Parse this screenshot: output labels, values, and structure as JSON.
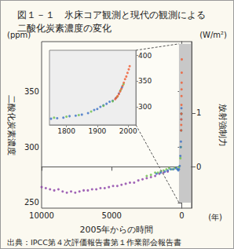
{
  "chart_data": [
    {
      "type": "scatter",
      "title": "図１－１　氷床コア観測と現代の観測による\n二酸化炭素濃度の変化",
      "xlabel": "2005年からの時間",
      "xunit": "(年)",
      "ylabel": "二酸化炭素濃度",
      "yunit": "(ppm)",
      "y2label": "放射強制力",
      "y2unit": "(W/m²)",
      "source": "出典：IPCC第４次評価報告書第１作業部会報告書",
      "xlim": [
        10000,
        -700
      ],
      "xticks": [
        10000,
        5000,
        0
      ],
      "ylim": [
        245,
        395
      ],
      "yticks": [
        250,
        300,
        350
      ],
      "y2lim": [
        -0.77,
        2.33
      ],
      "y2ticks": [
        0,
        1
      ],
      "highlight": {
        "x": [
          200,
          -650
        ],
        "y": [
          250,
          393
        ]
      },
      "series": [
        {
          "color": "#8a3fa8",
          "x": [
            10000,
            9700,
            9400,
            9100,
            8800,
            8500,
            8200,
            7900,
            7600,
            7300,
            7000,
            6700,
            6400,
            6100,
            5800,
            5500,
            5200,
            4900,
            4600,
            4300,
            4000,
            3700,
            3400,
            3100,
            2800,
            2500,
            2200,
            1900,
            1600,
            1300,
            1000
          ],
          "values": [
            264,
            263,
            262,
            261,
            262,
            260,
            259,
            260,
            259,
            260,
            261,
            261,
            262,
            262,
            263,
            263,
            264,
            265,
            265,
            266,
            267,
            268,
            268,
            270,
            271,
            272,
            273,
            274,
            276,
            277,
            278
          ]
        },
        {
          "color": "#6cc04a",
          "x": [
            2500,
            2200,
            1900,
            1700,
            1500,
            1300,
            1100,
            900,
            700,
            500,
            300,
            200,
            100,
            60,
            40,
            25
          ],
          "values": [
            274,
            275,
            277,
            277,
            278,
            279,
            280,
            281,
            280,
            281,
            280,
            282,
            290,
            300,
            315,
            330
          ]
        },
        {
          "color": "#3a6fc4",
          "x": [
            1800,
            1500,
            1200,
            1000,
            800,
            600,
            400,
            300,
            250,
            200,
            150,
            100,
            80,
            60,
            45,
            35,
            30,
            25
          ],
          "values": [
            276,
            277,
            278,
            279,
            280,
            280,
            281,
            280,
            279,
            280,
            283,
            292,
            300,
            305,
            315,
            325,
            330,
            335
          ]
        },
        {
          "color": "#f05a30",
          "x": [
            47,
            40,
            35,
            30,
            25,
            20,
            15,
            10,
            5,
            0
          ],
          "values": [
            315,
            320,
            325,
            330,
            338,
            346,
            352,
            358,
            367,
            379
          ]
        }
      ]
    },
    {
      "type": "scatter",
      "xlim": [
        1745,
        2025
      ],
      "xticks": [
        1800,
        1900,
        2000
      ],
      "ylim": [
        265,
        410
      ],
      "yticks": [
        300,
        350,
        400
      ],
      "series": [
        {
          "color": "#3a6fc4",
          "x": [
            1750,
            1770,
            1790,
            1810,
            1830,
            1850,
            1870,
            1890,
            1900,
            1910,
            1920,
            1930,
            1940,
            1950,
            1960,
            1970,
            1980
          ],
          "values": [
            277,
            278,
            279,
            282,
            283,
            285,
            288,
            294,
            296,
            300,
            303,
            306,
            310,
            312,
            317,
            326,
            338
          ]
        },
        {
          "color": "#6cc04a",
          "x": [
            1760,
            1800,
            1840,
            1880,
            1920,
            1950,
            1965,
            1975,
            1985
          ],
          "values": [
            279,
            281,
            284,
            291,
            302,
            311,
            320,
            332,
            344
          ]
        },
        {
          "color": "#f05a30",
          "x": [
            1958,
            1962,
            1966,
            1970,
            1974,
            1978,
            1982,
            1986,
            1990,
            1994,
            1998,
            2002,
            2005
          ],
          "values": [
            315,
            318,
            321,
            325,
            330,
            335,
            341,
            347,
            354,
            359,
            366,
            373,
            379
          ]
        }
      ]
    }
  ]
}
